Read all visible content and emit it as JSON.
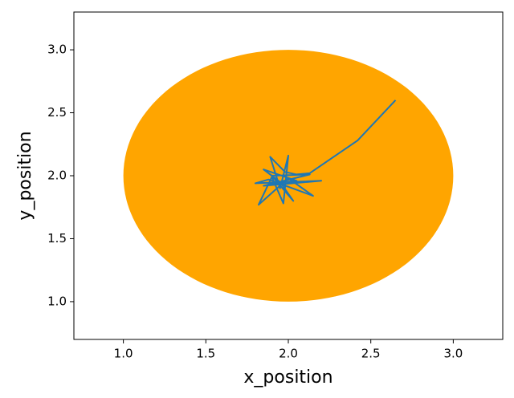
{
  "chart_data": {
    "type": "line",
    "xlabel": "x_position",
    "ylabel": "y_position",
    "x": [
      2.65,
      2.42,
      2.13,
      2.05,
      1.98,
      1.89,
      1.95,
      2.0,
      1.97,
      1.9,
      1.82,
      2.0,
      2.15,
      1.88,
      1.8,
      2.2,
      1.85,
      2.13,
      1.9,
      2.03,
      1.95,
      1.85,
      2.05,
      1.92
    ],
    "series": [
      {
        "color": "#1f77b4",
        "values": [
          2.6,
          2.28,
          2.02,
          2.01,
          2.03,
          2.15,
          1.9,
          2.16,
          1.78,
          1.99,
          1.77,
          1.98,
          1.84,
          1.97,
          1.94,
          1.96,
          1.92,
          2.01,
          2.0,
          1.8,
          1.95,
          2.05,
          1.96,
          1.94
        ]
      }
    ],
    "circle": {
      "center": [
        2,
        2
      ],
      "radius": 1,
      "color": "#ffa500"
    },
    "xlim": [
      0.7,
      3.3
    ],
    "ylim": [
      0.7,
      3.3
    ],
    "xticks": [
      {
        "value": 1,
        "label": "1.0"
      },
      {
        "value": 1.5,
        "label": "1.5"
      },
      {
        "value": 2,
        "label": "2.0"
      },
      {
        "value": 2.5,
        "label": "2.5"
      },
      {
        "value": 3,
        "label": "3.0"
      }
    ],
    "yticks": [
      {
        "value": 1,
        "label": "1.0"
      },
      {
        "value": 1.5,
        "label": "1.5"
      },
      {
        "value": 2,
        "label": "2.0"
      },
      {
        "value": 2.5,
        "label": "2.5"
      },
      {
        "value": 3,
        "label": "3.0"
      }
    ]
  }
}
